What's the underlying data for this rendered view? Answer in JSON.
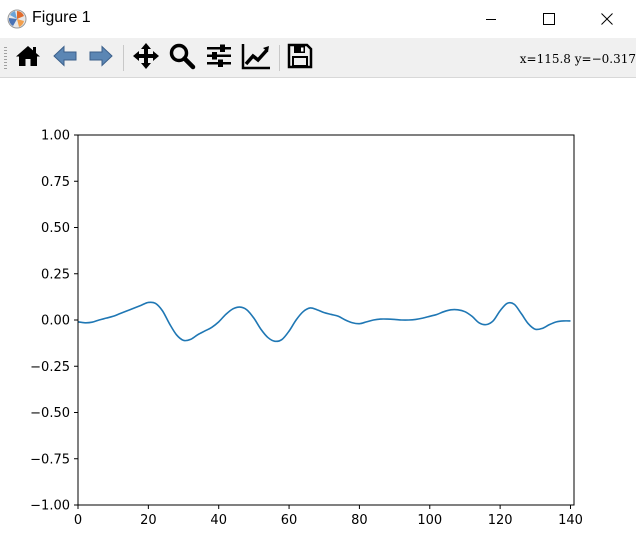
{
  "window": {
    "title": "Figure 1",
    "icon": "matplotlib-logo-icon",
    "controls": [
      "minimize-icon",
      "maximize-icon",
      "close-icon"
    ]
  },
  "toolbar": {
    "buttons": [
      "home-icon",
      "back-arrow-icon",
      "forward-arrow-icon",
      "pan-move-icon",
      "zoom-magnifier-icon",
      "configure-subplots-icon",
      "edit-axis-icon",
      "save-disk-icon"
    ],
    "coordinates": "x=115.8 y=−0.317"
  },
  "colors": {
    "line": "#1f77b4",
    "toolbar_bg": "#f0f0f0"
  },
  "chart_data": {
    "type": "line",
    "title": "",
    "xlabel": "",
    "ylabel": "",
    "xlim": [
      0,
      141
    ],
    "ylim": [
      -1.0,
      1.0
    ],
    "xticks": [
      0,
      20,
      40,
      60,
      80,
      100,
      120,
      140
    ],
    "xtick_labels": [
      "0",
      "20",
      "40",
      "60",
      "80",
      "100",
      "120",
      "140"
    ],
    "yticks": [
      -1.0,
      -0.75,
      -0.5,
      -0.25,
      0.0,
      0.25,
      0.5,
      0.75,
      1.0
    ],
    "ytick_labels": [
      "−1.00",
      "−0.75",
      "−0.50",
      "−0.25",
      "0.00",
      "0.25",
      "0.50",
      "0.75",
      "1.00"
    ],
    "grid": false,
    "series": [
      {
        "x": [
          0,
          2,
          4,
          6,
          8,
          10,
          12,
          14,
          16,
          18,
          20,
          22,
          24,
          26,
          28,
          30,
          32,
          34,
          36,
          38,
          40,
          42,
          44,
          46,
          48,
          50,
          52,
          54,
          56,
          58,
          60,
          62,
          64,
          66,
          68,
          70,
          72,
          74,
          76,
          78,
          80,
          82,
          84,
          86,
          88,
          90,
          92,
          94,
          96,
          98,
          100,
          102,
          104,
          106,
          108,
          110,
          112,
          114,
          116,
          118,
          120,
          122,
          124,
          126,
          128,
          130,
          132,
          134,
          136,
          138,
          140
        ],
        "y": [
          -0.01,
          -0.015,
          -0.012,
          0.0,
          0.01,
          0.02,
          0.035,
          0.05,
          0.065,
          0.08,
          0.095,
          0.09,
          0.05,
          -0.02,
          -0.08,
          -0.11,
          -0.105,
          -0.08,
          -0.06,
          -0.04,
          -0.01,
          0.03,
          0.06,
          0.07,
          0.055,
          0.01,
          -0.05,
          -0.095,
          -0.115,
          -0.105,
          -0.06,
          0.0,
          0.045,
          0.065,
          0.055,
          0.04,
          0.03,
          0.02,
          0.0,
          -0.015,
          -0.02,
          -0.01,
          0.0,
          0.005,
          0.005,
          0.003,
          0.0,
          0.0,
          0.003,
          0.01,
          0.02,
          0.03,
          0.045,
          0.055,
          0.055,
          0.045,
          0.02,
          -0.015,
          -0.025,
          -0.005,
          0.05,
          0.09,
          0.085,
          0.035,
          -0.02,
          -0.05,
          -0.045,
          -0.025,
          -0.01,
          -0.005,
          -0.005
        ]
      }
    ]
  }
}
